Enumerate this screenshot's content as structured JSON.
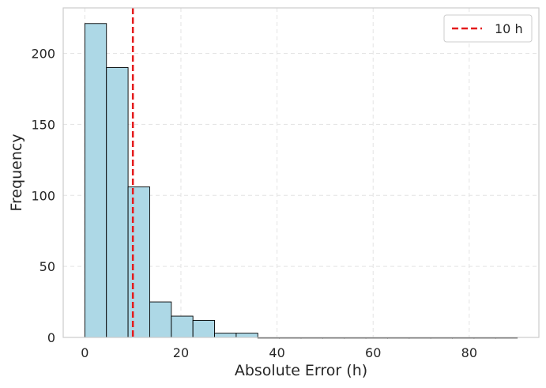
{
  "chart_data": {
    "type": "bar",
    "subtype": "histogram",
    "xlabel": "Absolute Error (h)",
    "ylabel": "Frequency",
    "xlim": [
      -4.5,
      94.5
    ],
    "ylim": [
      0,
      232
    ],
    "x_ticks": [
      0,
      20,
      40,
      60,
      80
    ],
    "y_ticks": [
      0,
      50,
      100,
      150,
      200
    ],
    "grid": true,
    "bar_color": "#add8e6",
    "bar_edge_color": "#000000",
    "bin_width": 4.5,
    "bins": [
      {
        "start": 0.0,
        "end": 4.5,
        "count": 221
      },
      {
        "start": 4.5,
        "end": 9.0,
        "count": 190
      },
      {
        "start": 9.0,
        "end": 13.5,
        "count": 106
      },
      {
        "start": 13.5,
        "end": 18.0,
        "count": 25
      },
      {
        "start": 18.0,
        "end": 22.5,
        "count": 15
      },
      {
        "start": 22.5,
        "end": 27.0,
        "count": 12
      },
      {
        "start": 27.0,
        "end": 31.5,
        "count": 3
      },
      {
        "start": 31.5,
        "end": 36.0,
        "count": 3
      },
      {
        "start": 36.0,
        "end": 40.5,
        "count": 0
      },
      {
        "start": 40.5,
        "end": 45.0,
        "count": 0
      },
      {
        "start": 45.0,
        "end": 49.5,
        "count": 0
      },
      {
        "start": 49.5,
        "end": 54.0,
        "count": 0
      },
      {
        "start": 54.0,
        "end": 58.5,
        "count": 0
      },
      {
        "start": 58.5,
        "end": 63.0,
        "count": 0
      },
      {
        "start": 63.0,
        "end": 67.5,
        "count": 0
      },
      {
        "start": 67.5,
        "end": 72.0,
        "count": 0
      },
      {
        "start": 72.0,
        "end": 76.5,
        "count": 0
      },
      {
        "start": 76.5,
        "end": 81.0,
        "count": 0
      },
      {
        "start": 81.0,
        "end": 85.5,
        "count": 0
      },
      {
        "start": 85.5,
        "end": 90.0,
        "count": 0
      }
    ],
    "reference_line": {
      "x": 10,
      "label": "10 h",
      "color": "#e41a1c",
      "style": "dashed"
    },
    "legend": {
      "position": "top-right",
      "entries": [
        "10 h"
      ]
    }
  }
}
